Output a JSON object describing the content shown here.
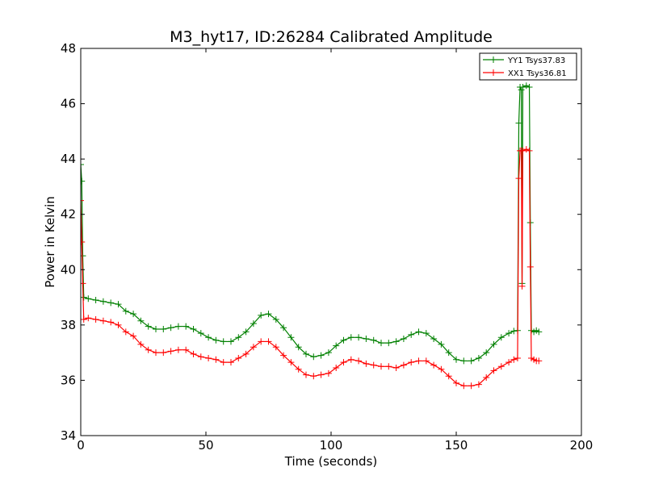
{
  "chart_data": {
    "type": "line",
    "title": "M3_hyt17, ID:26284 Calibrated Amplitude",
    "xlabel": "Time (seconds)",
    "ylabel": "Power in Kelvin",
    "xlim": [
      0,
      200
    ],
    "ylim": [
      34,
      48
    ],
    "xticks": [
      0,
      50,
      100,
      150,
      200
    ],
    "yticks": [
      34,
      36,
      38,
      40,
      42,
      44,
      46,
      48
    ],
    "grid": false,
    "legend_position": "top-right",
    "series": [
      {
        "name": "YY1 Tsys37.83",
        "color": "#008000",
        "marker": "+",
        "points": [
          [
            0,
            43.8
          ],
          [
            0.4,
            43.2
          ],
          [
            0.8,
            40.5
          ],
          [
            1.2,
            39.0
          ],
          [
            3,
            38.95
          ],
          [
            6,
            38.9
          ],
          [
            9,
            38.85
          ],
          [
            12,
            38.8
          ],
          [
            15,
            38.75
          ],
          [
            18,
            38.5
          ],
          [
            21,
            38.4
          ],
          [
            24,
            38.15
          ],
          [
            27,
            37.95
          ],
          [
            30,
            37.85
          ],
          [
            33,
            37.85
          ],
          [
            36,
            37.9
          ],
          [
            39,
            37.95
          ],
          [
            42,
            37.95
          ],
          [
            45,
            37.85
          ],
          [
            48,
            37.7
          ],
          [
            51,
            37.55
          ],
          [
            54,
            37.45
          ],
          [
            57,
            37.4
          ],
          [
            60,
            37.4
          ],
          [
            63,
            37.55
          ],
          [
            66,
            37.75
          ],
          [
            69,
            38.05
          ],
          [
            72,
            38.35
          ],
          [
            75,
            38.4
          ],
          [
            78,
            38.2
          ],
          [
            81,
            37.9
          ],
          [
            84,
            37.55
          ],
          [
            87,
            37.2
          ],
          [
            90,
            36.95
          ],
          [
            93,
            36.85
          ],
          [
            96,
            36.9
          ],
          [
            99,
            37.0
          ],
          [
            102,
            37.25
          ],
          [
            105,
            37.45
          ],
          [
            108,
            37.55
          ],
          [
            111,
            37.55
          ],
          [
            114,
            37.5
          ],
          [
            117,
            37.45
          ],
          [
            120,
            37.35
          ],
          [
            123,
            37.35
          ],
          [
            126,
            37.4
          ],
          [
            129,
            37.5
          ],
          [
            132,
            37.65
          ],
          [
            135,
            37.75
          ],
          [
            138,
            37.7
          ],
          [
            141,
            37.5
          ],
          [
            144,
            37.3
          ],
          [
            147,
            37.0
          ],
          [
            150,
            36.75
          ],
          [
            153,
            36.7
          ],
          [
            156,
            36.7
          ],
          [
            159,
            36.8
          ],
          [
            162,
            37.0
          ],
          [
            165,
            37.3
          ],
          [
            168,
            37.55
          ],
          [
            171,
            37.7
          ],
          [
            173,
            37.78
          ],
          [
            174.5,
            37.8
          ],
          [
            175,
            45.3
          ],
          [
            175.5,
            46.6
          ],
          [
            176,
            46.5
          ],
          [
            176.3,
            39.5
          ],
          [
            176.6,
            46.6
          ],
          [
            178,
            46.65
          ],
          [
            179.2,
            46.6
          ],
          [
            179.6,
            41.7
          ],
          [
            180,
            37.8
          ],
          [
            181,
            37.75
          ],
          [
            182,
            37.8
          ],
          [
            183,
            37.75
          ]
        ]
      },
      {
        "name": "XX1 Tsys36.81",
        "color": "#ff0000",
        "marker": "+",
        "points": [
          [
            0,
            42.5
          ],
          [
            0.4,
            41.0
          ],
          [
            0.8,
            39.5
          ],
          [
            1.2,
            38.2
          ],
          [
            3,
            38.25
          ],
          [
            6,
            38.2
          ],
          [
            9,
            38.15
          ],
          [
            12,
            38.1
          ],
          [
            15,
            38.0
          ],
          [
            18,
            37.75
          ],
          [
            21,
            37.6
          ],
          [
            24,
            37.3
          ],
          [
            27,
            37.1
          ],
          [
            30,
            37.0
          ],
          [
            33,
            37.0
          ],
          [
            36,
            37.05
          ],
          [
            39,
            37.1
          ],
          [
            42,
            37.1
          ],
          [
            45,
            36.95
          ],
          [
            48,
            36.85
          ],
          [
            51,
            36.8
          ],
          [
            54,
            36.75
          ],
          [
            57,
            36.65
          ],
          [
            60,
            36.65
          ],
          [
            63,
            36.8
          ],
          [
            66,
            36.95
          ],
          [
            69,
            37.2
          ],
          [
            72,
            37.4
          ],
          [
            75,
            37.4
          ],
          [
            78,
            37.2
          ],
          [
            81,
            36.9
          ],
          [
            84,
            36.65
          ],
          [
            87,
            36.4
          ],
          [
            90,
            36.2
          ],
          [
            93,
            36.15
          ],
          [
            96,
            36.2
          ],
          [
            99,
            36.25
          ],
          [
            102,
            36.45
          ],
          [
            105,
            36.65
          ],
          [
            108,
            36.75
          ],
          [
            111,
            36.7
          ],
          [
            114,
            36.6
          ],
          [
            117,
            36.55
          ],
          [
            120,
            36.5
          ],
          [
            123,
            36.5
          ],
          [
            126,
            36.45
          ],
          [
            129,
            36.55
          ],
          [
            132,
            36.65
          ],
          [
            135,
            36.7
          ],
          [
            138,
            36.7
          ],
          [
            141,
            36.55
          ],
          [
            144,
            36.4
          ],
          [
            147,
            36.15
          ],
          [
            150,
            35.9
          ],
          [
            153,
            35.8
          ],
          [
            156,
            35.8
          ],
          [
            159,
            35.85
          ],
          [
            162,
            36.1
          ],
          [
            165,
            36.35
          ],
          [
            168,
            36.5
          ],
          [
            171,
            36.65
          ],
          [
            173,
            36.75
          ],
          [
            174.5,
            36.8
          ],
          [
            175,
            43.3
          ],
          [
            175.5,
            44.3
          ],
          [
            176,
            44.3
          ],
          [
            176.3,
            39.4
          ],
          [
            176.6,
            44.3
          ],
          [
            178,
            44.35
          ],
          [
            179.2,
            44.3
          ],
          [
            179.6,
            40.1
          ],
          [
            180,
            36.8
          ],
          [
            181,
            36.75
          ],
          [
            182,
            36.7
          ],
          [
            183,
            36.7
          ]
        ]
      }
    ]
  }
}
